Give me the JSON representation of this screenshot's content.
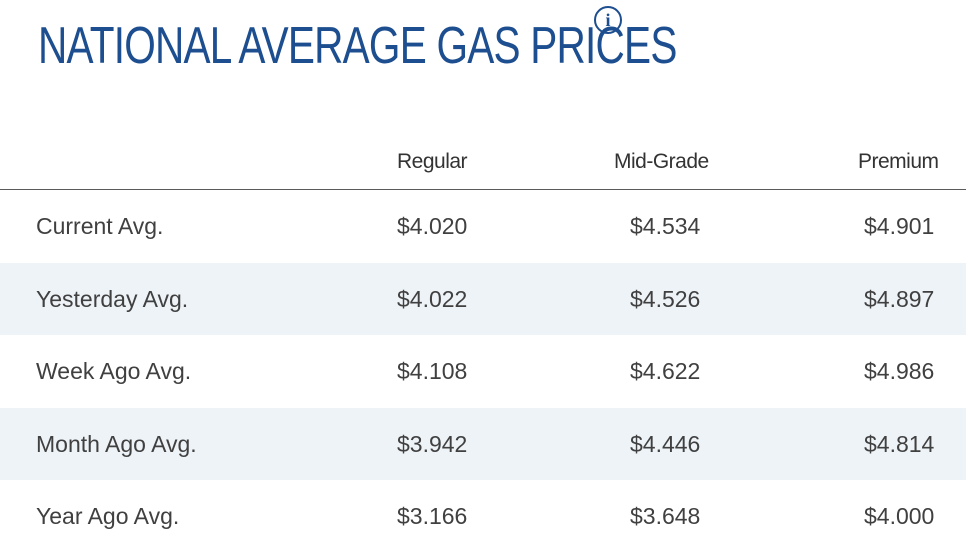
{
  "header": {
    "title": "NATIONAL AVERAGE GAS PRICES",
    "info_icon": "info-icon"
  },
  "table": {
    "columns": [
      "",
      "Regular",
      "Mid-Grade",
      "Premium"
    ],
    "rows": [
      {
        "label": "Current Avg.",
        "regular": "$4.020",
        "mid_grade": "$4.534",
        "premium": "$4.901"
      },
      {
        "label": "Yesterday Avg.",
        "regular": "$4.022",
        "mid_grade": "$4.526",
        "premium": "$4.897"
      },
      {
        "label": "Week Ago Avg.",
        "regular": "$4.108",
        "mid_grade": "$4.622",
        "premium": "$4.986"
      },
      {
        "label": "Month Ago Avg.",
        "regular": "$3.942",
        "mid_grade": "$4.446",
        "premium": "$4.814"
      },
      {
        "label": "Year Ago Avg.",
        "regular": "$3.166",
        "mid_grade": "$3.648",
        "premium": "$4.000"
      }
    ]
  },
  "colors": {
    "title": "#1d4e8f",
    "row_alt_background": "#eef3f7",
    "text": "#404040"
  }
}
